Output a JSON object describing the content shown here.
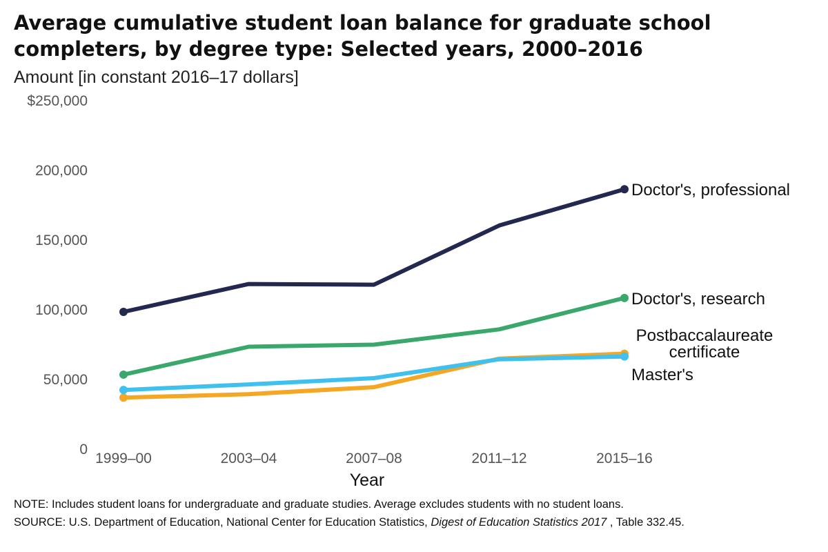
{
  "chart_data": {
    "type": "line",
    "title_lines": [
      "Average cumulative student loan balance for graduate school",
      "completers, by degree type: Selected years, 2000–2016"
    ],
    "subtitle": "Amount [in constant 2016–17 dollars]",
    "xlabel": "Year",
    "ylabel": "",
    "x": [
      "1999–00",
      "2003–04",
      "2007–08",
      "2011–12",
      "2015–16"
    ],
    "ylim": [
      0,
      250000
    ],
    "yticks": [
      0,
      50000,
      100000,
      150000,
      200000,
      250000
    ],
    "ytick_labels": [
      "0",
      "50,000",
      "100,000",
      "150,000",
      "200,000",
      "$250,000"
    ],
    "grid": false,
    "series": [
      {
        "name": "Doctor's, professional",
        "label_lines": [
          "Doctor's, professional"
        ],
        "color": "#23284f",
        "values": [
          98000,
          118000,
          117500,
          160000,
          186000
        ]
      },
      {
        "name": "Doctor's, research",
        "label_lines": [
          "Doctor's, research"
        ],
        "color": "#3aa76d",
        "values": [
          53000,
          73000,
          74500,
          85500,
          108000
        ]
      },
      {
        "name": "Postbaccalaureate certificate",
        "label_lines": [
          "Postbaccalaureate",
          "certificate"
        ],
        "color": "#f5a623",
        "values": [
          36500,
          39000,
          44000,
          64500,
          68000
        ]
      },
      {
        "name": "Master's",
        "label_lines": [
          "Master's"
        ],
        "color": "#3fc0ee",
        "values": [
          42000,
          46000,
          50500,
          64000,
          66000
        ]
      }
    ]
  },
  "notes": {
    "note": "NOTE: Includes student loans for undergraduate and graduate studies. Average excludes students with no student loans.",
    "source_prefix": "SOURCE: U.S. Department of Education, National Center for Education Statistics, ",
    "source_title": "Digest of Education Statistics 2017",
    "source_suffix": " , Table 332.45."
  }
}
